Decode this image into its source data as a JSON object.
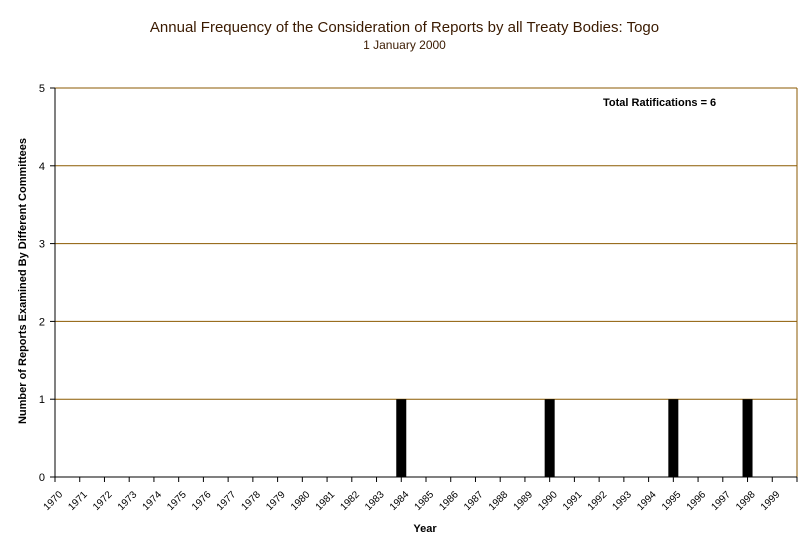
{
  "chart_data": {
    "type": "bar",
    "title": "Annual Frequency of the Consideration of Reports by all Treaty Bodies: Togo",
    "subtitle": "1 January 2000",
    "xlabel": "Year",
    "ylabel": "Number of Reports Examined By Different Committees",
    "ylim": [
      0,
      5
    ],
    "yticks": [
      "0",
      "1",
      "2",
      "3",
      "4",
      "5"
    ],
    "grid": true,
    "categories": [
      "1970",
      "1971",
      "1972",
      "1973",
      "1974",
      "1975",
      "1976",
      "1977",
      "1978",
      "1979",
      "1980",
      "1981",
      "1982",
      "1983",
      "1984",
      "1985",
      "1986",
      "1987",
      "1988",
      "1989",
      "1990",
      "1991",
      "1992",
      "1993",
      "1994",
      "1995",
      "1996",
      "1997",
      "1998",
      "1999"
    ],
    "values": [
      0,
      0,
      0,
      0,
      0,
      0,
      0,
      0,
      0,
      0,
      0,
      0,
      0,
      1,
      0,
      0,
      0,
      0,
      0,
      1,
      0,
      0,
      0,
      0,
      1,
      0,
      0,
      1,
      0,
      0
    ],
    "annotation": "Total Ratifications = 6",
    "colors": {
      "bar": "#000000",
      "grid": "#8b5a00",
      "axis": "#000000",
      "title": "#3a1a00"
    }
  }
}
